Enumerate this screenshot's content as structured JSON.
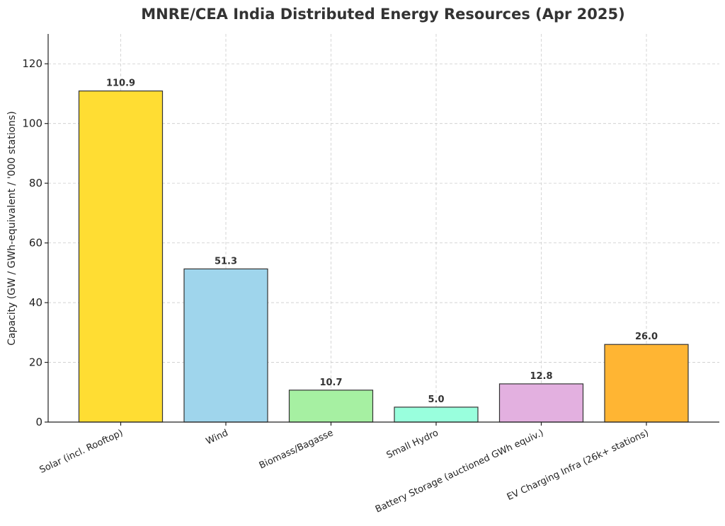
{
  "chart_data": {
    "type": "bar",
    "title": "MNRE/CEA India Distributed Energy Resources (Apr 2025)",
    "xlabel": "",
    "ylabel": "Capacity (GW / GWh-equivalent / '000 stations)",
    "ylim": [
      0,
      130
    ],
    "yticks": [
      0,
      20,
      40,
      60,
      80,
      100,
      120
    ],
    "grid": true,
    "categories": [
      "Solar (incl. Rooftop)",
      "Wind",
      "Biomass/Bagasse",
      "Small Hydro",
      "Battery Storage (auctioned GWh equiv.)",
      "EV Charging Infra (26k+ stations)"
    ],
    "values": [
      110.9,
      51.3,
      10.7,
      5.0,
      12.8,
      26.0
    ],
    "value_labels": [
      "110.9",
      "51.3",
      "10.7",
      "5.0",
      "12.8",
      "26.0"
    ],
    "colors": [
      "#FFDD33",
      "#9FD5EC",
      "#A6F0A2",
      "#99FFDD",
      "#E3B0E0",
      "#FFB533"
    ]
  }
}
